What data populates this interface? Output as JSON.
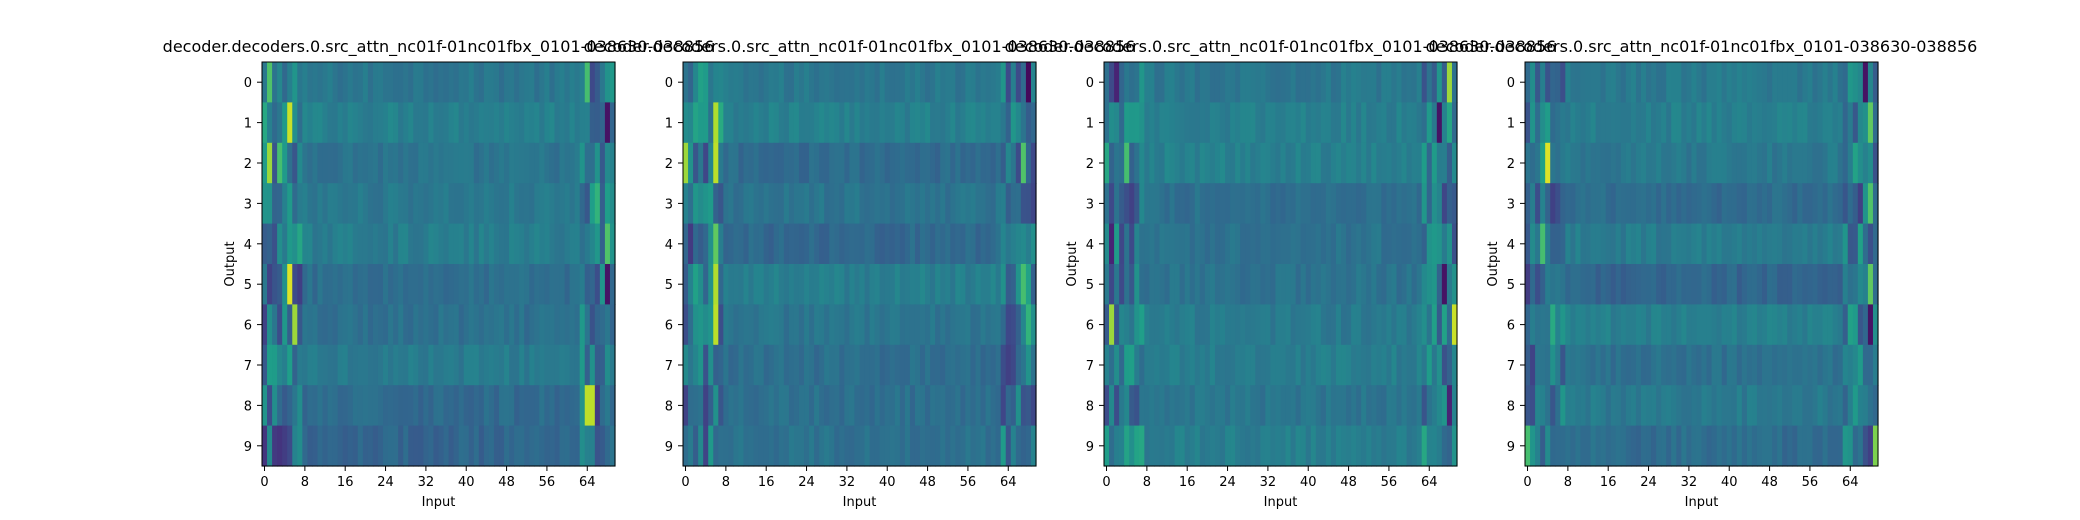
{
  "colors": {
    "colormap": [
      "#440154",
      "#482878",
      "#3e4989",
      "#31688e",
      "#26828e",
      "#1f9e89",
      "#35b779",
      "#6ece58",
      "#b5de2b",
      "#fde725"
    ]
  },
  "chart_data": [
    {
      "type": "heatmap",
      "title": "decoder.decoders.0.src_attn_nc01f-01nc01fbx_0101-038630-038856",
      "xlabel": "Input",
      "ylabel": "Output",
      "xlim": [
        0,
        70
      ],
      "ylim": [
        0,
        10
      ],
      "x_ticks": [
        "0",
        "8",
        "16",
        "24",
        "32",
        "40",
        "48",
        "56",
        "64"
      ],
      "y_ticks": [
        "0",
        "1",
        "2",
        "3",
        "4",
        "5",
        "6",
        "7",
        "8",
        "9"
      ],
      "hot_spots": [
        [
          0,
          1,
          0.72
        ],
        [
          0,
          64,
          0.7
        ],
        [
          1,
          5,
          0.92
        ],
        [
          1,
          68,
          0.05
        ],
        [
          2,
          1,
          0.85
        ],
        [
          2,
          3,
          0.7
        ],
        [
          3,
          66,
          0.65
        ],
        [
          4,
          68,
          0.72
        ],
        [
          5,
          5,
          0.95
        ],
        [
          5,
          68,
          0.05
        ],
        [
          6,
          6,
          0.85
        ],
        [
          8,
          64,
          0.9
        ],
        [
          8,
          65,
          0.9
        ]
      ]
    },
    {
      "type": "heatmap",
      "title": "decoder.decoders.0.src_attn_nc01f-01nc01fbx_0101-038630-038856",
      "xlabel": "Input",
      "ylabel": "",
      "xlim": [
        0,
        70
      ],
      "ylim": [
        0,
        10
      ],
      "x_ticks": [
        "0",
        "8",
        "16",
        "24",
        "32",
        "40",
        "48",
        "56",
        "64"
      ],
      "y_ticks": [
        "0",
        "1",
        "2",
        "3",
        "4",
        "5",
        "6",
        "7",
        "8",
        "9"
      ],
      "hot_spots": [
        [
          0,
          68,
          0.02
        ],
        [
          1,
          6,
          0.88
        ],
        [
          2,
          0,
          0.85
        ],
        [
          2,
          6,
          0.9
        ],
        [
          2,
          67,
          0.72
        ],
        [
          4,
          6,
          0.75
        ],
        [
          5,
          6,
          0.88
        ],
        [
          5,
          67,
          0.7
        ],
        [
          6,
          6,
          0.9
        ],
        [
          6,
          68,
          0.65
        ]
      ]
    },
    {
      "type": "heatmap",
      "title": "decoder.decoders.0.src_attn_nc01f-01nc01fbx_0101-038630-038856",
      "xlabel": "Input",
      "ylabel": "Output",
      "xlim": [
        0,
        70
      ],
      "ylim": [
        0,
        10
      ],
      "x_ticks": [
        "0",
        "8",
        "16",
        "24",
        "32",
        "40",
        "48",
        "56",
        "64"
      ],
      "y_ticks": [
        "0",
        "1",
        "2",
        "3",
        "4",
        "5",
        "6",
        "7",
        "8",
        "9"
      ],
      "hot_spots": [
        [
          0,
          68,
          0.85
        ],
        [
          0,
          2,
          0.1
        ],
        [
          1,
          66,
          0.05
        ],
        [
          2,
          4,
          0.7
        ],
        [
          4,
          1,
          0.1
        ],
        [
          5,
          67,
          0.05
        ],
        [
          6,
          1,
          0.85
        ],
        [
          6,
          69,
          0.92
        ],
        [
          8,
          68,
          0.1
        ]
      ]
    },
    {
      "type": "heatmap",
      "title": "decoder.decoders.0.src_attn_nc01f-01nc01fbx_0101-038630-038856",
      "xlabel": "Input",
      "ylabel": "Output",
      "xlim": [
        0,
        70
      ],
      "ylim": [
        0,
        10
      ],
      "x_ticks": [
        "0",
        "8",
        "16",
        "24",
        "32",
        "40",
        "48",
        "56",
        "64"
      ],
      "y_ticks": [
        "0",
        "1",
        "2",
        "3",
        "4",
        "5",
        "6",
        "7",
        "8",
        "9"
      ],
      "hot_spots": [
        [
          0,
          67,
          0.05
        ],
        [
          1,
          68,
          0.75
        ],
        [
          2,
          4,
          0.95
        ],
        [
          3,
          68,
          0.72
        ],
        [
          4,
          3,
          0.7
        ],
        [
          5,
          68,
          0.75
        ],
        [
          6,
          68,
          0.05
        ],
        [
          9,
          0,
          0.7
        ],
        [
          9,
          69,
          0.8
        ]
      ]
    }
  ]
}
